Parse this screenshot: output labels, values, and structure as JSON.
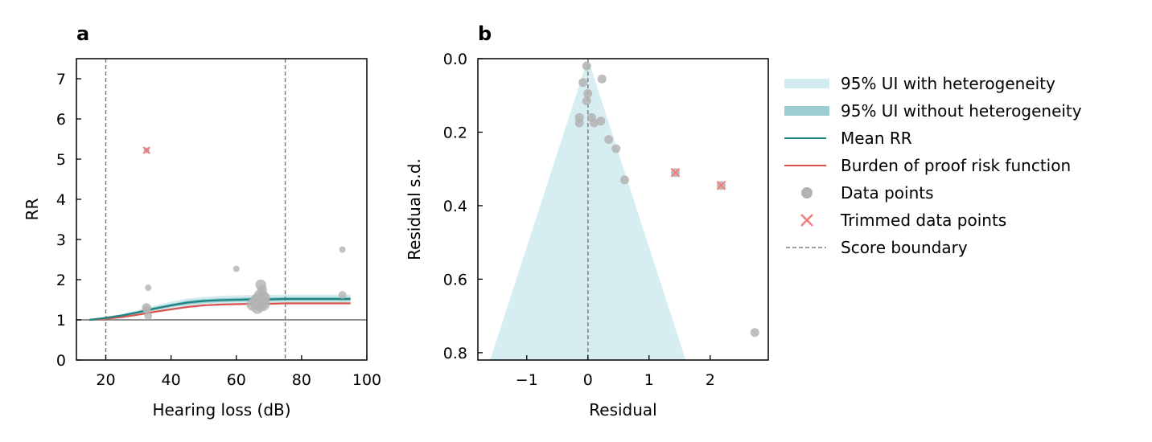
{
  "colors": {
    "ui_with_heterogeneity": "#d4ecef",
    "ui_without_heterogeneity": "#9ccdd0",
    "mean_rr": "#1a8580",
    "burden_of_proof": "#d9534f",
    "data_points": "#b3b3b3",
    "trimmed_points": "#f47c7c",
    "score_boundary": "#808080",
    "reference_line": "#808080",
    "funnel_fill": "#d6eef2"
  },
  "chart_data": [
    {
      "panel": "a",
      "type": "scatter",
      "title": "",
      "xlabel": "Hearing loss (dB)",
      "ylabel": "RR",
      "xlim": [
        11,
        100
      ],
      "ylim": [
        0,
        7.5
      ],
      "xticks": [
        20,
        40,
        60,
        80,
        100
      ],
      "yticks": [
        0,
        1,
        2,
        3,
        4,
        5,
        6,
        7
      ],
      "reference_line_y": 1,
      "score_boundary_x": [
        20,
        75
      ],
      "curves": {
        "x": [
          15,
          20,
          25,
          30,
          35,
          40,
          45,
          50,
          55,
          60,
          65,
          70,
          75,
          80,
          85,
          90,
          95
        ],
        "mean_rr": [
          1.0,
          1.05,
          1.11,
          1.19,
          1.28,
          1.36,
          1.43,
          1.47,
          1.49,
          1.5,
          1.51,
          1.51,
          1.52,
          1.52,
          1.52,
          1.52,
          1.52
        ],
        "ui_with_heterogeneity_lower": [
          1.0,
          1.03,
          1.07,
          1.13,
          1.2,
          1.27,
          1.33,
          1.37,
          1.39,
          1.4,
          1.41,
          1.41,
          1.42,
          1.42,
          1.42,
          1.42,
          1.42
        ],
        "ui_with_heterogeneity_upper": [
          1.0,
          1.07,
          1.15,
          1.25,
          1.36,
          1.45,
          1.53,
          1.57,
          1.6,
          1.61,
          1.62,
          1.62,
          1.63,
          1.63,
          1.63,
          1.63,
          1.63
        ],
        "ui_without_heterogeneity_lower": [
          1.0,
          1.04,
          1.09,
          1.16,
          1.24,
          1.32,
          1.38,
          1.42,
          1.44,
          1.45,
          1.46,
          1.46,
          1.47,
          1.47,
          1.47,
          1.47,
          1.47
        ],
        "ui_without_heterogeneity_upper": [
          1.0,
          1.06,
          1.13,
          1.22,
          1.32,
          1.4,
          1.48,
          1.52,
          1.54,
          1.55,
          1.56,
          1.56,
          1.57,
          1.57,
          1.57,
          1.57,
          1.57
        ],
        "burden_of_proof": [
          1.0,
          1.03,
          1.07,
          1.13,
          1.2,
          1.26,
          1.32,
          1.36,
          1.38,
          1.39,
          1.4,
          1.4,
          1.41,
          1.41,
          1.41,
          1.41,
          1.41
        ]
      },
      "points": [
        {
          "x": 32.5,
          "y": 1.3,
          "size": 4
        },
        {
          "x": 32.5,
          "y": 1.26,
          "size": 3
        },
        {
          "x": 33,
          "y": 1.1,
          "size": 3
        },
        {
          "x": 33,
          "y": 1.8,
          "size": 2
        },
        {
          "x": 60,
          "y": 2.27,
          "size": 2
        },
        {
          "x": 65,
          "y": 1.38,
          "size": 6
        },
        {
          "x": 66,
          "y": 1.5,
          "size": 5
        },
        {
          "x": 66.5,
          "y": 1.3,
          "size": 6
        },
        {
          "x": 67,
          "y": 1.45,
          "size": 10
        },
        {
          "x": 67.5,
          "y": 1.6,
          "size": 7
        },
        {
          "x": 67.5,
          "y": 1.87,
          "size": 5
        },
        {
          "x": 68,
          "y": 1.4,
          "size": 8
        },
        {
          "x": 68.5,
          "y": 1.55,
          "size": 6
        },
        {
          "x": 68,
          "y": 1.75,
          "size": 4
        },
        {
          "x": 92.5,
          "y": 2.75,
          "size": 2
        },
        {
          "x": 92.5,
          "y": 1.62,
          "size": 3
        }
      ],
      "trimmed_points": [
        {
          "x": 32.5,
          "y": 5.22
        }
      ]
    },
    {
      "panel": "b",
      "type": "scatter",
      "title": "",
      "xlabel": "Residual",
      "ylabel": "Residual s.d.",
      "xlim": [
        -1.8,
        2.95
      ],
      "ylim": [
        0.82,
        0.0
      ],
      "y_inverted": true,
      "xticks": [
        -1,
        0,
        1,
        2
      ],
      "xtick_labels": [
        "−1",
        "0",
        "1",
        "2"
      ],
      "yticks": [
        0.0,
        0.2,
        0.4,
        0.6,
        0.8
      ],
      "ytick_labels": [
        "0.0",
        "0.2",
        "0.4",
        "0.6",
        "0.8"
      ],
      "funnel": {
        "apex": [
          0,
          0
        ],
        "base_y": 0.82,
        "base_left": -1.6,
        "base_right": 1.6
      },
      "center_line_x": 0,
      "points": [
        {
          "x": -0.02,
          "y": 0.02
        },
        {
          "x": -0.08,
          "y": 0.065
        },
        {
          "x": 0.23,
          "y": 0.055
        },
        {
          "x": 0.0,
          "y": 0.095
        },
        {
          "x": -0.02,
          "y": 0.115
        },
        {
          "x": -0.14,
          "y": 0.16
        },
        {
          "x": -0.14,
          "y": 0.175
        },
        {
          "x": 0.06,
          "y": 0.16
        },
        {
          "x": 0.1,
          "y": 0.175
        },
        {
          "x": 0.21,
          "y": 0.17
        },
        {
          "x": 0.34,
          "y": 0.22
        },
        {
          "x": 0.46,
          "y": 0.245
        },
        {
          "x": 0.6,
          "y": 0.33
        },
        {
          "x": 1.43,
          "y": 0.31
        },
        {
          "x": 2.18,
          "y": 0.345
        },
        {
          "x": 2.73,
          "y": 0.745
        }
      ],
      "trimmed_points": [
        {
          "x": 1.43,
          "y": 0.31
        },
        {
          "x": 2.18,
          "y": 0.345
        }
      ]
    }
  ],
  "panel_labels": {
    "a": "a",
    "b": "b"
  },
  "legend": {
    "placement": "right of panel b",
    "items": [
      {
        "key": "ui_with_heterogeneity",
        "label": "95% UI with heterogeneity",
        "kind": "band"
      },
      {
        "key": "ui_without_heterogeneity",
        "label": "95% UI without heterogeneity",
        "kind": "band"
      },
      {
        "key": "mean_rr",
        "label": "Mean RR",
        "kind": "line"
      },
      {
        "key": "burden_of_proof",
        "label": "Burden of proof risk function",
        "kind": "line"
      },
      {
        "key": "data_points",
        "label": "Data points",
        "kind": "dot"
      },
      {
        "key": "trimmed_points",
        "label": "Trimmed data points",
        "kind": "cross"
      },
      {
        "key": "score_boundary",
        "label": "Score boundary",
        "kind": "dashed"
      }
    ]
  }
}
